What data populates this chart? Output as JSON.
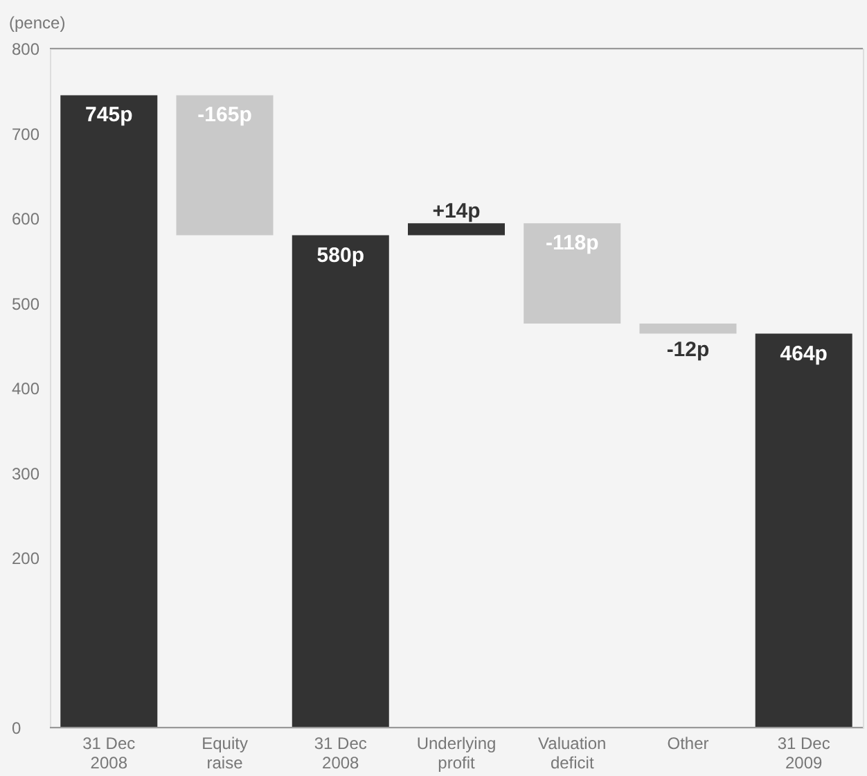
{
  "chart_data": {
    "type": "bar",
    "ylabel": "(pence)",
    "categories": [
      "31 Dec 2008",
      "Equity raise",
      "31 Dec 2008",
      "Underlying profit",
      "Valuation deficit",
      "Other",
      "31 Dec 2009"
    ],
    "values": [
      745,
      -165,
      580,
      14,
      -118,
      -12,
      464
    ],
    "base": [
      0,
      745,
      0,
      580,
      594,
      476,
      0
    ],
    "colors": [
      "#333333",
      "#c9c9c9",
      "#333333",
      "#333333",
      "#c9c9c9",
      "#c9c9c9",
      "#333333"
    ],
    "value_labels": [
      "745p",
      "-165p",
      "580p",
      "+14p",
      "-118p",
      "-12p",
      "464p"
    ],
    "ylim": [
      0,
      800
    ],
    "yticks": [
      0,
      200,
      300,
      400,
      500,
      600,
      700,
      800
    ],
    "grid": false
  }
}
